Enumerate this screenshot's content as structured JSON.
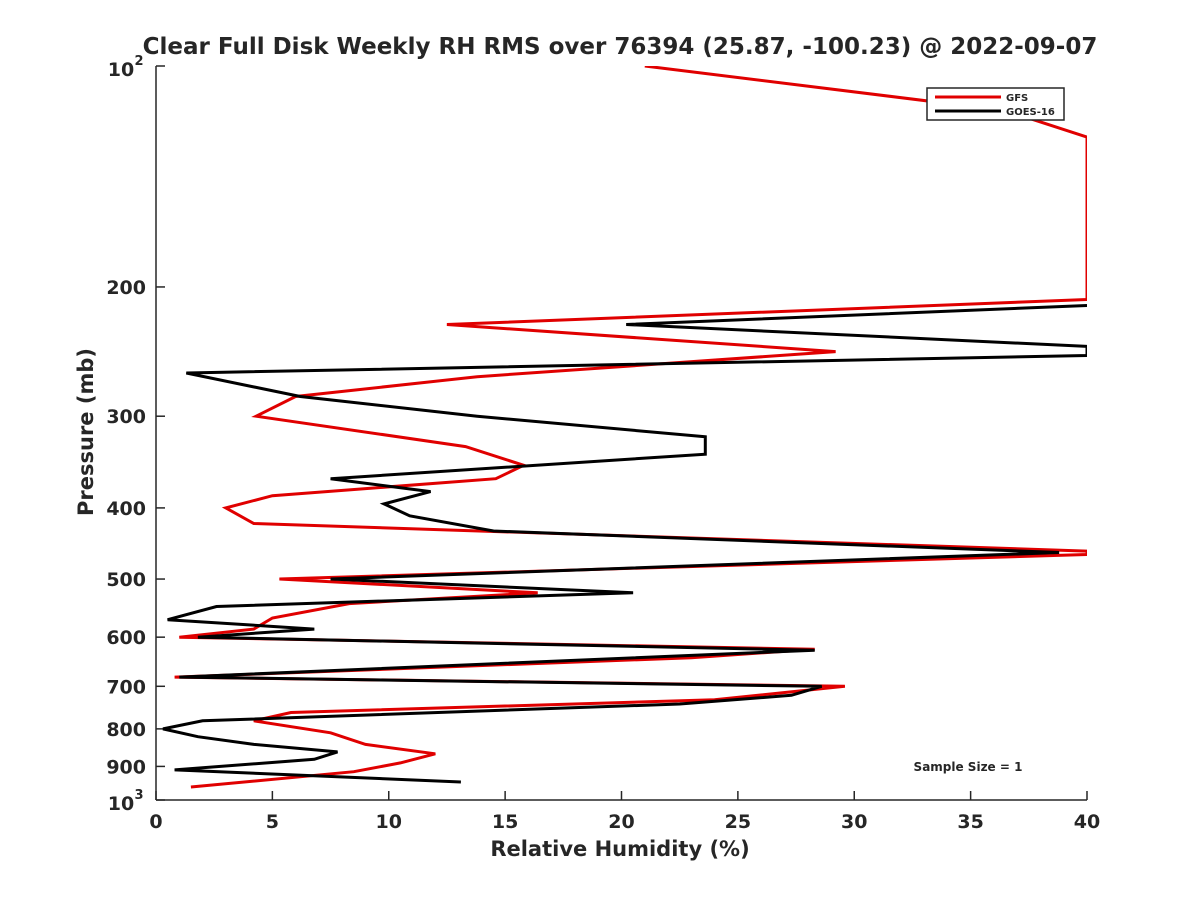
{
  "chart_data": {
    "type": "line",
    "title": "Clear Full Disk Weekly RH RMS over 76394 (25.87, -100.23) @ 2022-09-07",
    "xlabel": "Relative Humidity (%)",
    "ylabel": "Pressure (mb)",
    "xlim": [
      0,
      40
    ],
    "ylim": [
      100,
      1000
    ],
    "y_scale": "log",
    "y_reversed": true,
    "grid": false,
    "legend_position": "top-right",
    "annotation": "Sample Size = 1",
    "x_ticks": [
      "0",
      "5",
      "10",
      "15",
      "20",
      "25",
      "30",
      "35",
      "40"
    ],
    "y_ticks": [
      {
        "value": 100,
        "base": "10",
        "exp": "2"
      },
      {
        "value": 200,
        "label": "200"
      },
      {
        "value": 300,
        "label": "300"
      },
      {
        "value": 400,
        "label": "400"
      },
      {
        "value": 500,
        "label": "500"
      },
      {
        "value": 600,
        "label": "600"
      },
      {
        "value": 700,
        "label": "700"
      },
      {
        "value": 800,
        "label": "800"
      },
      {
        "value": 900,
        "label": "900"
      },
      {
        "value": 1000,
        "base": "10",
        "exp": "3"
      }
    ],
    "series": [
      {
        "name": "GFS",
        "color": "#e00000",
        "points": [
          [
            21.0,
            100
          ],
          [
            36.5,
            115
          ],
          [
            40.0,
            125
          ],
          [
            40.0,
            208
          ],
          [
            12.5,
            225
          ],
          [
            29.2,
            245
          ],
          [
            13.8,
            265
          ],
          [
            6.0,
            282
          ],
          [
            4.3,
            300
          ],
          [
            13.3,
            330
          ],
          [
            15.8,
            350
          ],
          [
            14.6,
            365
          ],
          [
            5.0,
            385
          ],
          [
            3.0,
            400
          ],
          [
            4.2,
            420
          ],
          [
            40.0,
            458
          ],
          [
            40.0,
            463
          ],
          [
            5.3,
            500
          ],
          [
            16.4,
            522
          ],
          [
            8.3,
            540
          ],
          [
            5.0,
            565
          ],
          [
            4.2,
            585
          ],
          [
            1.0,
            600
          ],
          [
            28.3,
            623
          ],
          [
            23.0,
            640
          ],
          [
            0.8,
            680
          ],
          [
            29.6,
            700
          ],
          [
            24.0,
            730
          ],
          [
            5.8,
            760
          ],
          [
            4.2,
            780
          ],
          [
            7.5,
            810
          ],
          [
            9.0,
            840
          ],
          [
            12.0,
            865
          ],
          [
            10.5,
            890
          ],
          [
            8.5,
            915
          ],
          [
            1.5,
            960
          ]
        ]
      },
      {
        "name": "GOES-16",
        "color": "#000000",
        "points": [
          [
            40.0,
            212
          ],
          [
            20.2,
            225
          ],
          [
            40.0,
            241
          ],
          [
            40.0,
            248
          ],
          [
            1.3,
            262
          ],
          [
            6.2,
            282
          ],
          [
            13.8,
            300
          ],
          [
            23.6,
            320
          ],
          [
            23.6,
            338
          ],
          [
            7.5,
            365
          ],
          [
            11.8,
            380
          ],
          [
            9.8,
            395
          ],
          [
            10.9,
            410
          ],
          [
            14.5,
            430
          ],
          [
            38.8,
            460
          ],
          [
            7.5,
            500
          ],
          [
            20.5,
            522
          ],
          [
            2.6,
            545
          ],
          [
            0.5,
            568
          ],
          [
            6.8,
            585
          ],
          [
            1.8,
            600
          ],
          [
            28.3,
            625
          ],
          [
            1.0,
            680
          ],
          [
            28.6,
            700
          ],
          [
            27.3,
            720
          ],
          [
            22.5,
            740
          ],
          [
            2.0,
            780
          ],
          [
            0.3,
            800
          ],
          [
            1.8,
            820
          ],
          [
            4.2,
            840
          ],
          [
            7.8,
            860
          ],
          [
            6.8,
            880
          ],
          [
            0.8,
            910
          ],
          [
            13.1,
            945
          ]
        ]
      }
    ]
  }
}
